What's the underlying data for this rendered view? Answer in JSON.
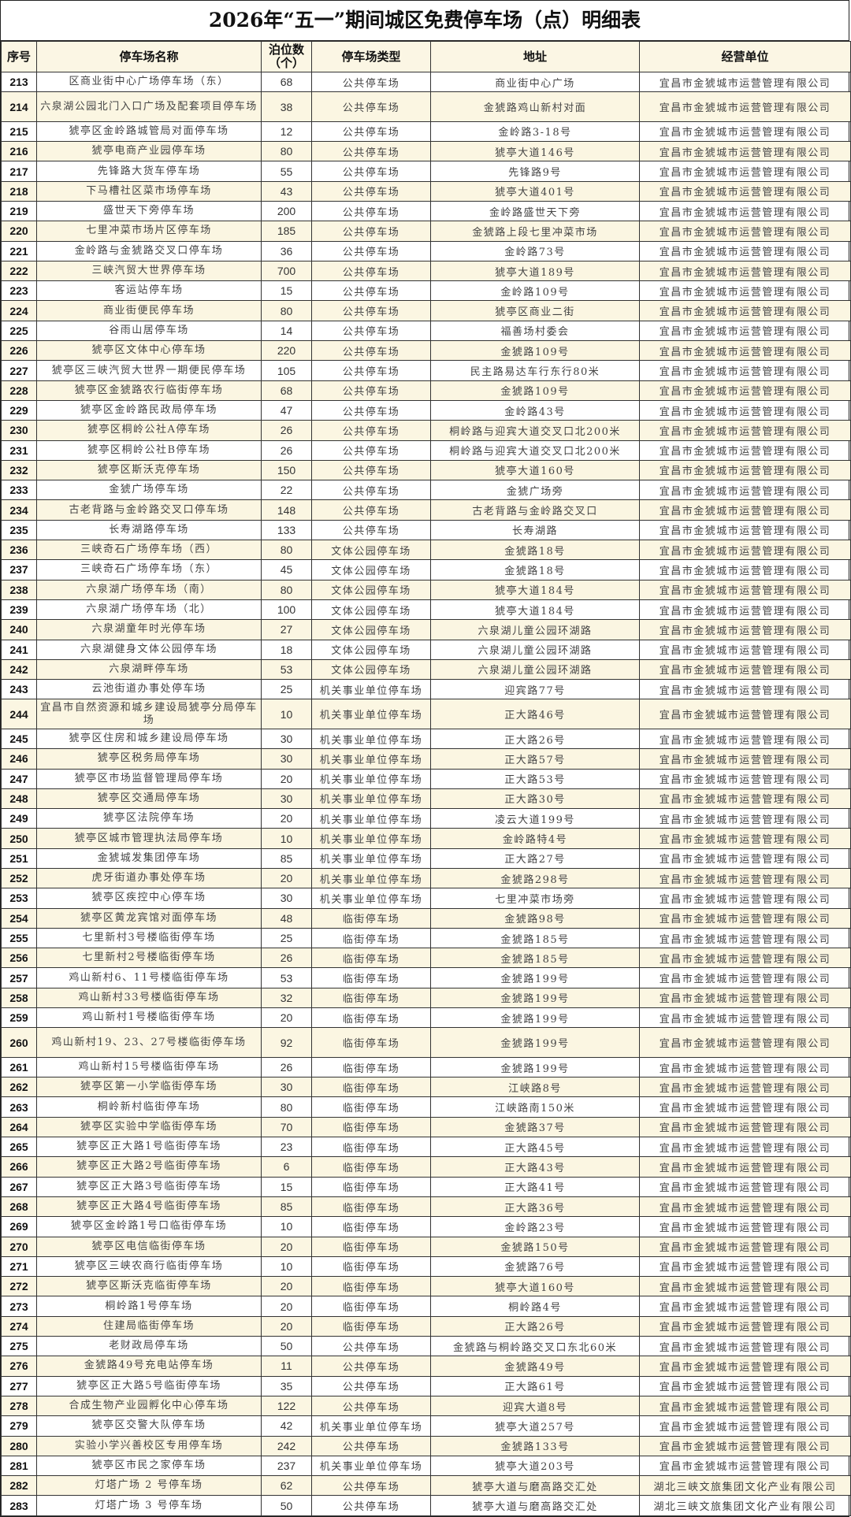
{
  "title": "2026年“五一”期间城区免费停车场（点）明细表",
  "headers": [
    "序号",
    "停车场名称",
    "泊位数（个）",
    "停车场类型",
    "地址",
    "经营单位"
  ],
  "rows": [
    [
      "213",
      "区商业街中心广场停车场（东）",
      "68",
      "公共停车场",
      "商业街中心广场",
      "宜昌市金猇城市运营管理有限公司"
    ],
    [
      "214",
      "六泉湖公园北门入口广场及配套项目停车场",
      "38",
      "公共停车场",
      "金猇路鸡山新村对面",
      "宜昌市金猇城市运营管理有限公司"
    ],
    [
      "215",
      "猇亭区金岭路城管局对面停车场",
      "12",
      "公共停车场",
      "金岭路3-18号",
      "宜昌市金猇城市运营管理有限公司"
    ],
    [
      "216",
      "猇亭电商产业园停车场",
      "80",
      "公共停车场",
      "猇亭大道146号",
      "宜昌市金猇城市运营管理有限公司"
    ],
    [
      "217",
      "先锋路大货车停车场",
      "55",
      "公共停车场",
      "先锋路9号",
      "宜昌市金猇城市运营管理有限公司"
    ],
    [
      "218",
      "下马槽社区菜市场停车场",
      "43",
      "公共停车场",
      "猇亭大道401号",
      "宜昌市金猇城市运营管理有限公司"
    ],
    [
      "219",
      "盛世天下旁停车场",
      "200",
      "公共停车场",
      "金岭路盛世天下旁",
      "宜昌市金猇城市运营管理有限公司"
    ],
    [
      "220",
      "七里冲菜市场片区停车场",
      "185",
      "公共停车场",
      "金猇路上段七里冲菜市场",
      "宜昌市金猇城市运营管理有限公司"
    ],
    [
      "221",
      "金岭路与金猇路交叉口停车场",
      "36",
      "公共停车场",
      "金岭路73号",
      "宜昌市金猇城市运营管理有限公司"
    ],
    [
      "222",
      "三峡汽贸大世界停车场",
      "700",
      "公共停车场",
      "猇亭大道189号",
      "宜昌市金猇城市运营管理有限公司"
    ],
    [
      "223",
      "客运站停车场",
      "15",
      "公共停车场",
      "金岭路109号",
      "宜昌市金猇城市运营管理有限公司"
    ],
    [
      "224",
      "商业街便民停车场",
      "80",
      "公共停车场",
      "猇亭区商业二街",
      "宜昌市金猇城市运营管理有限公司"
    ],
    [
      "225",
      "谷雨山居停车场",
      "14",
      "公共停车场",
      "福善场村委会",
      "宜昌市金猇城市运营管理有限公司"
    ],
    [
      "226",
      "猇亭区文体中心停车场",
      "220",
      "公共停车场",
      "金猇路109号",
      "宜昌市金猇城市运营管理有限公司"
    ],
    [
      "227",
      "猇亭区三峡汽贸大世界一期便民停车场",
      "105",
      "公共停车场",
      "民主路易达车行东行80米",
      "宜昌市金猇城市运营管理有限公司"
    ],
    [
      "228",
      "猇亭区金猇路农行临街停车场",
      "68",
      "公共停车场",
      "金猇路109号",
      "宜昌市金猇城市运营管理有限公司"
    ],
    [
      "229",
      "猇亭区金岭路民政局停车场",
      "47",
      "公共停车场",
      "金岭路43号",
      "宜昌市金猇城市运营管理有限公司"
    ],
    [
      "230",
      "猇亭区桐岭公社A停车场",
      "26",
      "公共停车场",
      "桐岭路与迎宾大道交叉口北200米",
      "宜昌市金猇城市运营管理有限公司"
    ],
    [
      "231",
      "猇亭区桐岭公社B停车场",
      "26",
      "公共停车场",
      "桐岭路与迎宾大道交叉口北200米",
      "宜昌市金猇城市运营管理有限公司"
    ],
    [
      "232",
      "猇亭区斯沃克停车场",
      "150",
      "公共停车场",
      "猇亭大道160号",
      "宜昌市金猇城市运营管理有限公司"
    ],
    [
      "233",
      "金猇广场停车场",
      "22",
      "公共停车场",
      "金猇广场旁",
      "宜昌市金猇城市运营管理有限公司"
    ],
    [
      "234",
      "古老背路与金岭路交叉口停车场",
      "148",
      "公共停车场",
      "古老背路与金岭路交叉口",
      "宜昌市金猇城市运营管理有限公司"
    ],
    [
      "235",
      "长寿湖路停车场",
      "133",
      "公共停车场",
      "长寿湖路",
      "宜昌市金猇城市运营管理有限公司"
    ],
    [
      "236",
      "三峡奇石广场停车场（西）",
      "80",
      "文体公园停车场",
      "金猇路18号",
      "宜昌市金猇城市运营管理有限公司"
    ],
    [
      "237",
      "三峡奇石广场停车场（东）",
      "45",
      "文体公园停车场",
      "金猇路18号",
      "宜昌市金猇城市运营管理有限公司"
    ],
    [
      "238",
      "六泉湖广场停车场（南）",
      "80",
      "文体公园停车场",
      "猇亭大道184号",
      "宜昌市金猇城市运营管理有限公司"
    ],
    [
      "239",
      "六泉湖广场停车场（北）",
      "100",
      "文体公园停车场",
      "猇亭大道184号",
      "宜昌市金猇城市运营管理有限公司"
    ],
    [
      "240",
      "六泉湖童年时光停车场",
      "27",
      "文体公园停车场",
      "六泉湖儿童公园环湖路",
      "宜昌市金猇城市运营管理有限公司"
    ],
    [
      "241",
      "六泉湖健身文体公园停车场",
      "18",
      "文体公园停车场",
      "六泉湖儿童公园环湖路",
      "宜昌市金猇城市运营管理有限公司"
    ],
    [
      "242",
      "六泉湖畔停车场",
      "53",
      "文体公园停车场",
      "六泉湖儿童公园环湖路",
      "宜昌市金猇城市运营管理有限公司"
    ],
    [
      "243",
      "云池街道办事处停车场",
      "25",
      "机关事业单位停车场",
      "迎宾路77号",
      "宜昌市金猇城市运营管理有限公司"
    ],
    [
      "244",
      "宜昌市自然资源和城乡建设局猇亭分局停车场",
      "10",
      "机关事业单位停车场",
      "正大路46号",
      "宜昌市金猇城市运营管理有限公司"
    ],
    [
      "245",
      "猇亭区住房和城乡建设局停车场",
      "30",
      "机关事业单位停车场",
      "正大路26号",
      "宜昌市金猇城市运营管理有限公司"
    ],
    [
      "246",
      "猇亭区税务局停车场",
      "30",
      "机关事业单位停车场",
      "正大路57号",
      "宜昌市金猇城市运营管理有限公司"
    ],
    [
      "247",
      "猇亭区市场监督管理局停车场",
      "20",
      "机关事业单位停车场",
      "正大路53号",
      "宜昌市金猇城市运营管理有限公司"
    ],
    [
      "248",
      "猇亭区交通局停车场",
      "30",
      "机关事业单位停车场",
      "正大路30号",
      "宜昌市金猇城市运营管理有限公司"
    ],
    [
      "249",
      "猇亭区法院停车场",
      "20",
      "机关事业单位停车场",
      "凌云大道199号",
      "宜昌市金猇城市运营管理有限公司"
    ],
    [
      "250",
      "猇亭区城市管理执法局停车场",
      "10",
      "机关事业单位停车场",
      "金岭路特4号",
      "宜昌市金猇城市运营管理有限公司"
    ],
    [
      "251",
      "金猇城发集团停车场",
      "85",
      "机关事业单位停车场",
      "正大路27号",
      "宜昌市金猇城市运营管理有限公司"
    ],
    [
      "252",
      "虎牙街道办事处停车场",
      "20",
      "机关事业单位停车场",
      "金猇路298号",
      "宜昌市金猇城市运营管理有限公司"
    ],
    [
      "253",
      "猇亭区疾控中心停车场",
      "30",
      "机关事业单位停车场",
      "七里冲菜市场旁",
      "宜昌市金猇城市运营管理有限公司"
    ],
    [
      "254",
      "猇亭区黄龙宾馆对面停车场",
      "48",
      "临街停车场",
      "金猇路98号",
      "宜昌市金猇城市运营管理有限公司"
    ],
    [
      "255",
      "七里新村3号楼临街停车场",
      "25",
      "临街停车场",
      "金猇路185号",
      "宜昌市金猇城市运营管理有限公司"
    ],
    [
      "256",
      "七里新村2号楼临街停车场",
      "26",
      "临街停车场",
      "金猇路185号",
      "宜昌市金猇城市运营管理有限公司"
    ],
    [
      "257",
      "鸡山新村6、11号楼临街停车场",
      "53",
      "临街停车场",
      "金猇路199号",
      "宜昌市金猇城市运营管理有限公司"
    ],
    [
      "258",
      "鸡山新村33号楼临街停车场",
      "32",
      "临街停车场",
      "金猇路199号",
      "宜昌市金猇城市运营管理有限公司"
    ],
    [
      "259",
      "鸡山新村1号楼临街停车场",
      "20",
      "临街停车场",
      "金猇路199号",
      "宜昌市金猇城市运营管理有限公司"
    ],
    [
      "260",
      "鸡山新村19、23、27号楼临街停车场",
      "92",
      "临街停车场",
      "金猇路199号",
      "宜昌市金猇城市运营管理有限公司"
    ],
    [
      "261",
      "鸡山新村15号楼临街停车场",
      "26",
      "临街停车场",
      "金猇路199号",
      "宜昌市金猇城市运营管理有限公司"
    ],
    [
      "262",
      "猇亭区第一小学临街停车场",
      "30",
      "临街停车场",
      "江峡路8号",
      "宜昌市金猇城市运营管理有限公司"
    ],
    [
      "263",
      "桐岭新村临街停车场",
      "80",
      "临街停车场",
      "江峡路南150米",
      "宜昌市金猇城市运营管理有限公司"
    ],
    [
      "264",
      "猇亭区实验中学临街停车场",
      "70",
      "临街停车场",
      "金猇路37号",
      "宜昌市金猇城市运营管理有限公司"
    ],
    [
      "265",
      "猇亭区正大路1号临街停车场",
      "23",
      "临街停车场",
      "正大路45号",
      "宜昌市金猇城市运营管理有限公司"
    ],
    [
      "266",
      "猇亭区正大路2号临街停车场",
      "6",
      "临街停车场",
      "正大路43号",
      "宜昌市金猇城市运营管理有限公司"
    ],
    [
      "267",
      "猇亭区正大路3号临街停车场",
      "15",
      "临街停车场",
      "正大路41号",
      "宜昌市金猇城市运营管理有限公司"
    ],
    [
      "268",
      "猇亭区正大路4号临街停车场",
      "85",
      "临街停车场",
      "正大路36号",
      "宜昌市金猇城市运营管理有限公司"
    ],
    [
      "269",
      "猇亭区金岭路1号口临街停车场",
      "10",
      "临街停车场",
      "金岭路23号",
      "宜昌市金猇城市运营管理有限公司"
    ],
    [
      "270",
      "猇亭区电信临街停车场",
      "20",
      "临街停车场",
      "金猇路150号",
      "宜昌市金猇城市运营管理有限公司"
    ],
    [
      "271",
      "猇亭区三峡农商行临街停车场",
      "10",
      "临街停车场",
      "金猇路76号",
      "宜昌市金猇城市运营管理有限公司"
    ],
    [
      "272",
      "猇亭区斯沃克临街停车场",
      "20",
      "临街停车场",
      "猇亭大道160号",
      "宜昌市金猇城市运营管理有限公司"
    ],
    [
      "273",
      "桐岭路1号停车场",
      "20",
      "临街停车场",
      "桐岭路4号",
      "宜昌市金猇城市运营管理有限公司"
    ],
    [
      "274",
      "住建局临街停车场",
      "20",
      "临街停车场",
      "正大路26号",
      "宜昌市金猇城市运营管理有限公司"
    ],
    [
      "275",
      "老财政局停车场",
      "50",
      "公共停车场",
      "金猇路与桐岭路交叉口东北60米",
      "宜昌市金猇城市运营管理有限公司"
    ],
    [
      "276",
      "金猇路49号充电站停车场",
      "11",
      "公共停车场",
      "金猇路49号",
      "宜昌市金猇城市运营管理有限公司"
    ],
    [
      "277",
      "猇亭区正大路5号临街停车场",
      "35",
      "公共停车场",
      "正大路61号",
      "宜昌市金猇城市运营管理有限公司"
    ],
    [
      "278",
      "合成生物产业园孵化中心停车场",
      "122",
      "公共停车场",
      "迎宾大道8号",
      "宜昌市金猇城市运营管理有限公司"
    ],
    [
      "279",
      "猇亭区交警大队停车场",
      "42",
      "机关事业单位停车场",
      "猇亭大道257号",
      "宜昌市金猇城市运营管理有限公司"
    ],
    [
      "280",
      "实验小学兴善校区专用停车场",
      "242",
      "公共停车场",
      "金猇路133号",
      "宜昌市金猇城市运营管理有限公司"
    ],
    [
      "281",
      "猇亭区市民之家停车场",
      "237",
      "机关事业单位停车场",
      "猇亭大道203号",
      "宜昌市金猇城市运营管理有限公司"
    ],
    [
      "282",
      "灯塔广场 2 号停车场",
      "62",
      "公共停车场",
      "猇亭大道与磨高路交汇处",
      "湖北三峡文旅集团文化产业有限公司"
    ],
    [
      "283",
      "灯塔广场 3 号停车场",
      "50",
      "公共停车场",
      "猇亭大道与磨高路交汇处",
      "湖北三峡文旅集团文化产业有限公司"
    ]
  ]
}
